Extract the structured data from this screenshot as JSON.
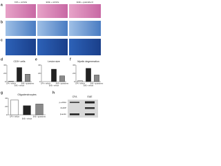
{
  "panels": {
    "letters": [
      "a",
      "b",
      "c",
      "d",
      "e",
      "f",
      "g",
      "h"
    ],
    "groups": [
      "CFA + vehicle",
      "EAE + vehicle",
      "EAE + guanabenz"
    ]
  },
  "blot": {
    "lanes": [
      "CFA",
      "EAE"
    ],
    "rows": [
      "p-eIF2α",
      "CHOP",
      "β-actin"
    ]
  },
  "chart_data": [
    {
      "type": "bar",
      "title": "CD3+ cells",
      "categories": [
        "CFA + vehicle",
        "EAE + vehicle",
        "EAE + guanabenz"
      ],
      "values": [
        1,
        34,
        18
      ],
      "colors": [
        "#ffffff",
        "#222222",
        "#8a8a8a"
      ],
      "ylim": [
        0,
        40
      ],
      "yticks": [
        0,
        20,
        40
      ]
    },
    {
      "type": "bar",
      "title": "Lesion size",
      "categories": [
        "CFA + vehicle",
        "EAE + vehicle",
        "EAE + guanabenz"
      ],
      "values": [
        0,
        30,
        14
      ],
      "colors": [
        "#ffffff",
        "#222222",
        "#8a8a8a"
      ],
      "ylim": [
        0,
        40
      ],
      "yticks": [
        0,
        20,
        40
      ]
    },
    {
      "type": "bar",
      "title": "Myelin degeneration",
      "categories": [
        "CFA + vehicle",
        "EAE + vehicle",
        "EAE + guanabenz"
      ],
      "values": [
        2,
        32,
        16
      ],
      "colors": [
        "#ffffff",
        "#222222",
        "#8a8a8a"
      ],
      "ylim": [
        0,
        40
      ],
      "yticks": [
        0,
        20,
        40
      ]
    },
    {
      "type": "bar",
      "title": "Oligodendrocytes",
      "categories": [
        "CFA + vehicle",
        "EAE + vehicle",
        "EAE + guanabenz"
      ],
      "values": [
        36,
        22,
        26
      ],
      "colors": [
        "#ffffff",
        "#222222",
        "#8a8a8a"
      ],
      "ylim": [
        0,
        40
      ],
      "yticks": [
        0,
        20,
        40
      ]
    }
  ]
}
